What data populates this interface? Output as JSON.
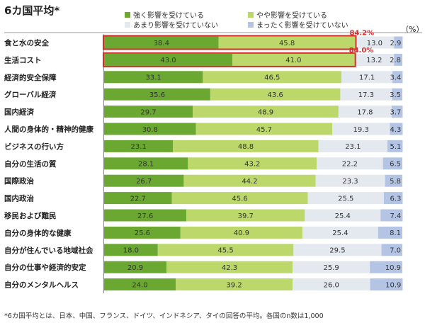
{
  "chart_data": {
    "type": "bar",
    "stacked": true,
    "orientation": "horizontal",
    "title": "6カ国平均*",
    "unit_label": "（%）",
    "xlim": [
      0,
      100
    ],
    "grid": false,
    "legend_position": "top",
    "categories": [
      "食と水の安全",
      "生活コスト",
      "経済的安全保障",
      "グローバル経済",
      "国内経済",
      "人間の身体的・精神的健康",
      "ビジネスの行い方",
      "自分の生活の質",
      "国際政治",
      "国内政治",
      "移民および難民",
      "自分の身体的な健康",
      "自分が住んでいる地域社会",
      "自分の仕事や経済的安定",
      "自分のメンタルヘルス"
    ],
    "series": [
      {
        "name": "強く影響を受けている",
        "color": "#6aa832",
        "values": [
          38.4,
          43.0,
          33.1,
          35.6,
          29.7,
          30.8,
          23.1,
          28.1,
          26.7,
          22.7,
          27.6,
          25.6,
          18.0,
          20.9,
          24.0
        ]
      },
      {
        "name": "やや影響を受けている",
        "color": "#bcd86a",
        "values": [
          45.8,
          41.0,
          46.5,
          43.6,
          48.9,
          45.7,
          48.8,
          43.2,
          44.2,
          45.6,
          39.7,
          40.9,
          45.5,
          42.3,
          39.2
        ]
      },
      {
        "name": "あまり影響を受けていない",
        "color": "#e3e9ef",
        "values": [
          13.0,
          13.2,
          17.1,
          17.3,
          17.8,
          19.3,
          23.1,
          22.2,
          23.3,
          25.5,
          25.4,
          25.4,
          29.5,
          25.9,
          26.0
        ]
      },
      {
        "name": "まったく影響を受けていない",
        "color": "#b4c4e4",
        "values": [
          2.9,
          2.8,
          3.4,
          3.5,
          3.7,
          4.3,
          5.1,
          6.5,
          5.8,
          6.3,
          7.4,
          8.1,
          7.0,
          10.9,
          10.9
        ]
      }
    ],
    "annotations": [
      {
        "category_index": 0,
        "text": "84.2%",
        "color": "#d62c2c",
        "value": 84.2
      },
      {
        "category_index": 1,
        "text": "84.0%",
        "color": "#d62c2c",
        "value": 84.0
      }
    ]
  },
  "footnote": "*6カ国平均とは、日本、中国、フランス、ドイツ、インドネシア、タイの回答の平均。各国のn数は1,000"
}
